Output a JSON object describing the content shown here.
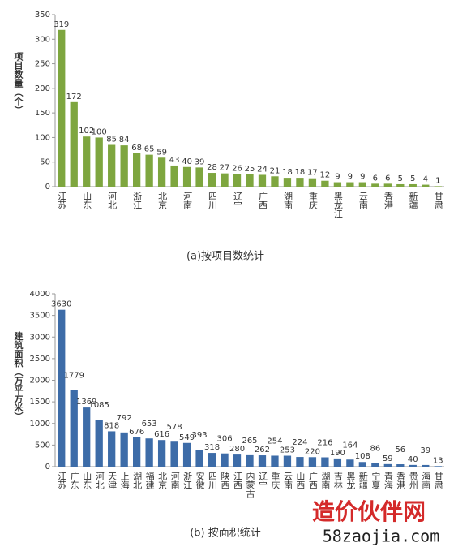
{
  "chart_data": [
    {
      "type": "bar",
      "title": "(a)按项目数统计",
      "ylabel": "项目数量（个）",
      "color": "#7ea63f",
      "categories": [
        "江苏",
        null,
        "山东",
        null,
        "河北",
        null,
        "浙江",
        null,
        "北京",
        null,
        "河南",
        null,
        "四川",
        null,
        "辽宁",
        null,
        "广西",
        null,
        "湖南",
        null,
        "重庆",
        null,
        "黑龙江",
        null,
        "云南",
        null,
        "香港",
        null,
        "新疆",
        null,
        "甘肃"
      ],
      "values": [
        319,
        172,
        102,
        100,
        85,
        84,
        68,
        65,
        59,
        43,
        40,
        39,
        28,
        27,
        26,
        25,
        24,
        21,
        18,
        18,
        17,
        12,
        9,
        9,
        9,
        6,
        6,
        5,
        5,
        4,
        1
      ],
      "ylim": [
        0,
        350
      ],
      "yticks": [
        0,
        50,
        100,
        150,
        200,
        250,
        300,
        350
      ]
    },
    {
      "type": "bar",
      "title": "(b) 按面积统计",
      "ylabel": "建筑面积（万平方米）",
      "color": "#3d6ca8",
      "categories": [
        "江苏",
        "广东",
        "山东",
        "河北",
        "天津",
        "上海",
        "湖北",
        "福建",
        "北京",
        "河南",
        "浙江",
        "安徽",
        "四川",
        "陕西",
        "江西",
        "内蒙古",
        "辽宁",
        "重庆",
        "云南",
        "山西",
        "广西",
        "湖南",
        "吉林",
        "黑龙",
        "新疆",
        "宁夏",
        "青海",
        "香港",
        "贵州",
        "海南",
        "甘肃"
      ],
      "values": [
        3630,
        1779,
        1369,
        1085,
        818,
        792,
        676,
        653,
        616,
        578,
        549,
        393,
        318,
        306,
        280,
        265,
        262,
        254,
        253,
        224,
        220,
        216,
        190,
        164,
        108,
        86,
        59,
        56,
        40,
        39,
        13
      ],
      "ylim": [
        0,
        4000
      ],
      "yticks": [
        0,
        500,
        1000,
        1500,
        2000,
        2500,
        3000,
        3500,
        4000
      ]
    }
  ],
  "watermark": {
    "name": "造价伙伴网",
    "url": "58zaojia.com"
  }
}
